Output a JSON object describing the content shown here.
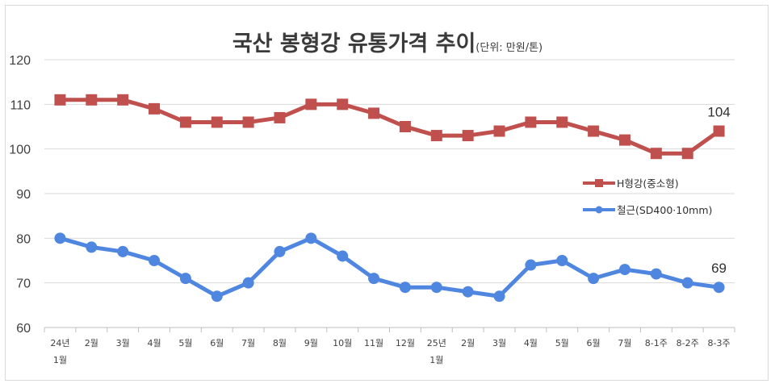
{
  "chart_data": {
    "type": "line",
    "title": "국산 봉형강 유통가격 추이",
    "unit": "(단위: 만원/톤)",
    "ylim": [
      60,
      120
    ],
    "yticks": [
      "60",
      "70",
      "80",
      "90",
      "100",
      "110",
      "120"
    ],
    "categories": [
      [
        "24년",
        "1월"
      ],
      [
        "2월"
      ],
      [
        "3월"
      ],
      [
        "4월"
      ],
      [
        "5월"
      ],
      [
        "6월"
      ],
      [
        "7월"
      ],
      [
        "8월"
      ],
      [
        "9월"
      ],
      [
        "10월"
      ],
      [
        "11월"
      ],
      [
        "12월"
      ],
      [
        "25년",
        "1월"
      ],
      [
        "2월"
      ],
      [
        "3월"
      ],
      [
        "4월"
      ],
      [
        "5월"
      ],
      [
        "6월"
      ],
      [
        "7월"
      ],
      [
        "8-1주"
      ],
      [
        "8-2주"
      ],
      [
        "8-3주"
      ]
    ],
    "series": [
      {
        "name": "H형강(중소형)",
        "color": "#c0504d",
        "marker": "square",
        "values": [
          111,
          111,
          111,
          109,
          106,
          106,
          106,
          107,
          110,
          110,
          108,
          105,
          103,
          103,
          104,
          106,
          106,
          104,
          102,
          99,
          99,
          104
        ],
        "end_label": "104"
      },
      {
        "name": "철근(SD400·10mm)",
        "color": "#4f86e0",
        "marker": "circle",
        "values": [
          80,
          78,
          77,
          75,
          71,
          67,
          70,
          77,
          80,
          76,
          71,
          69,
          69,
          68,
          67,
          74,
          75,
          71,
          73,
          72,
          70,
          69
        ],
        "end_label": "69"
      }
    ],
    "grid": true,
    "legend": "right"
  }
}
